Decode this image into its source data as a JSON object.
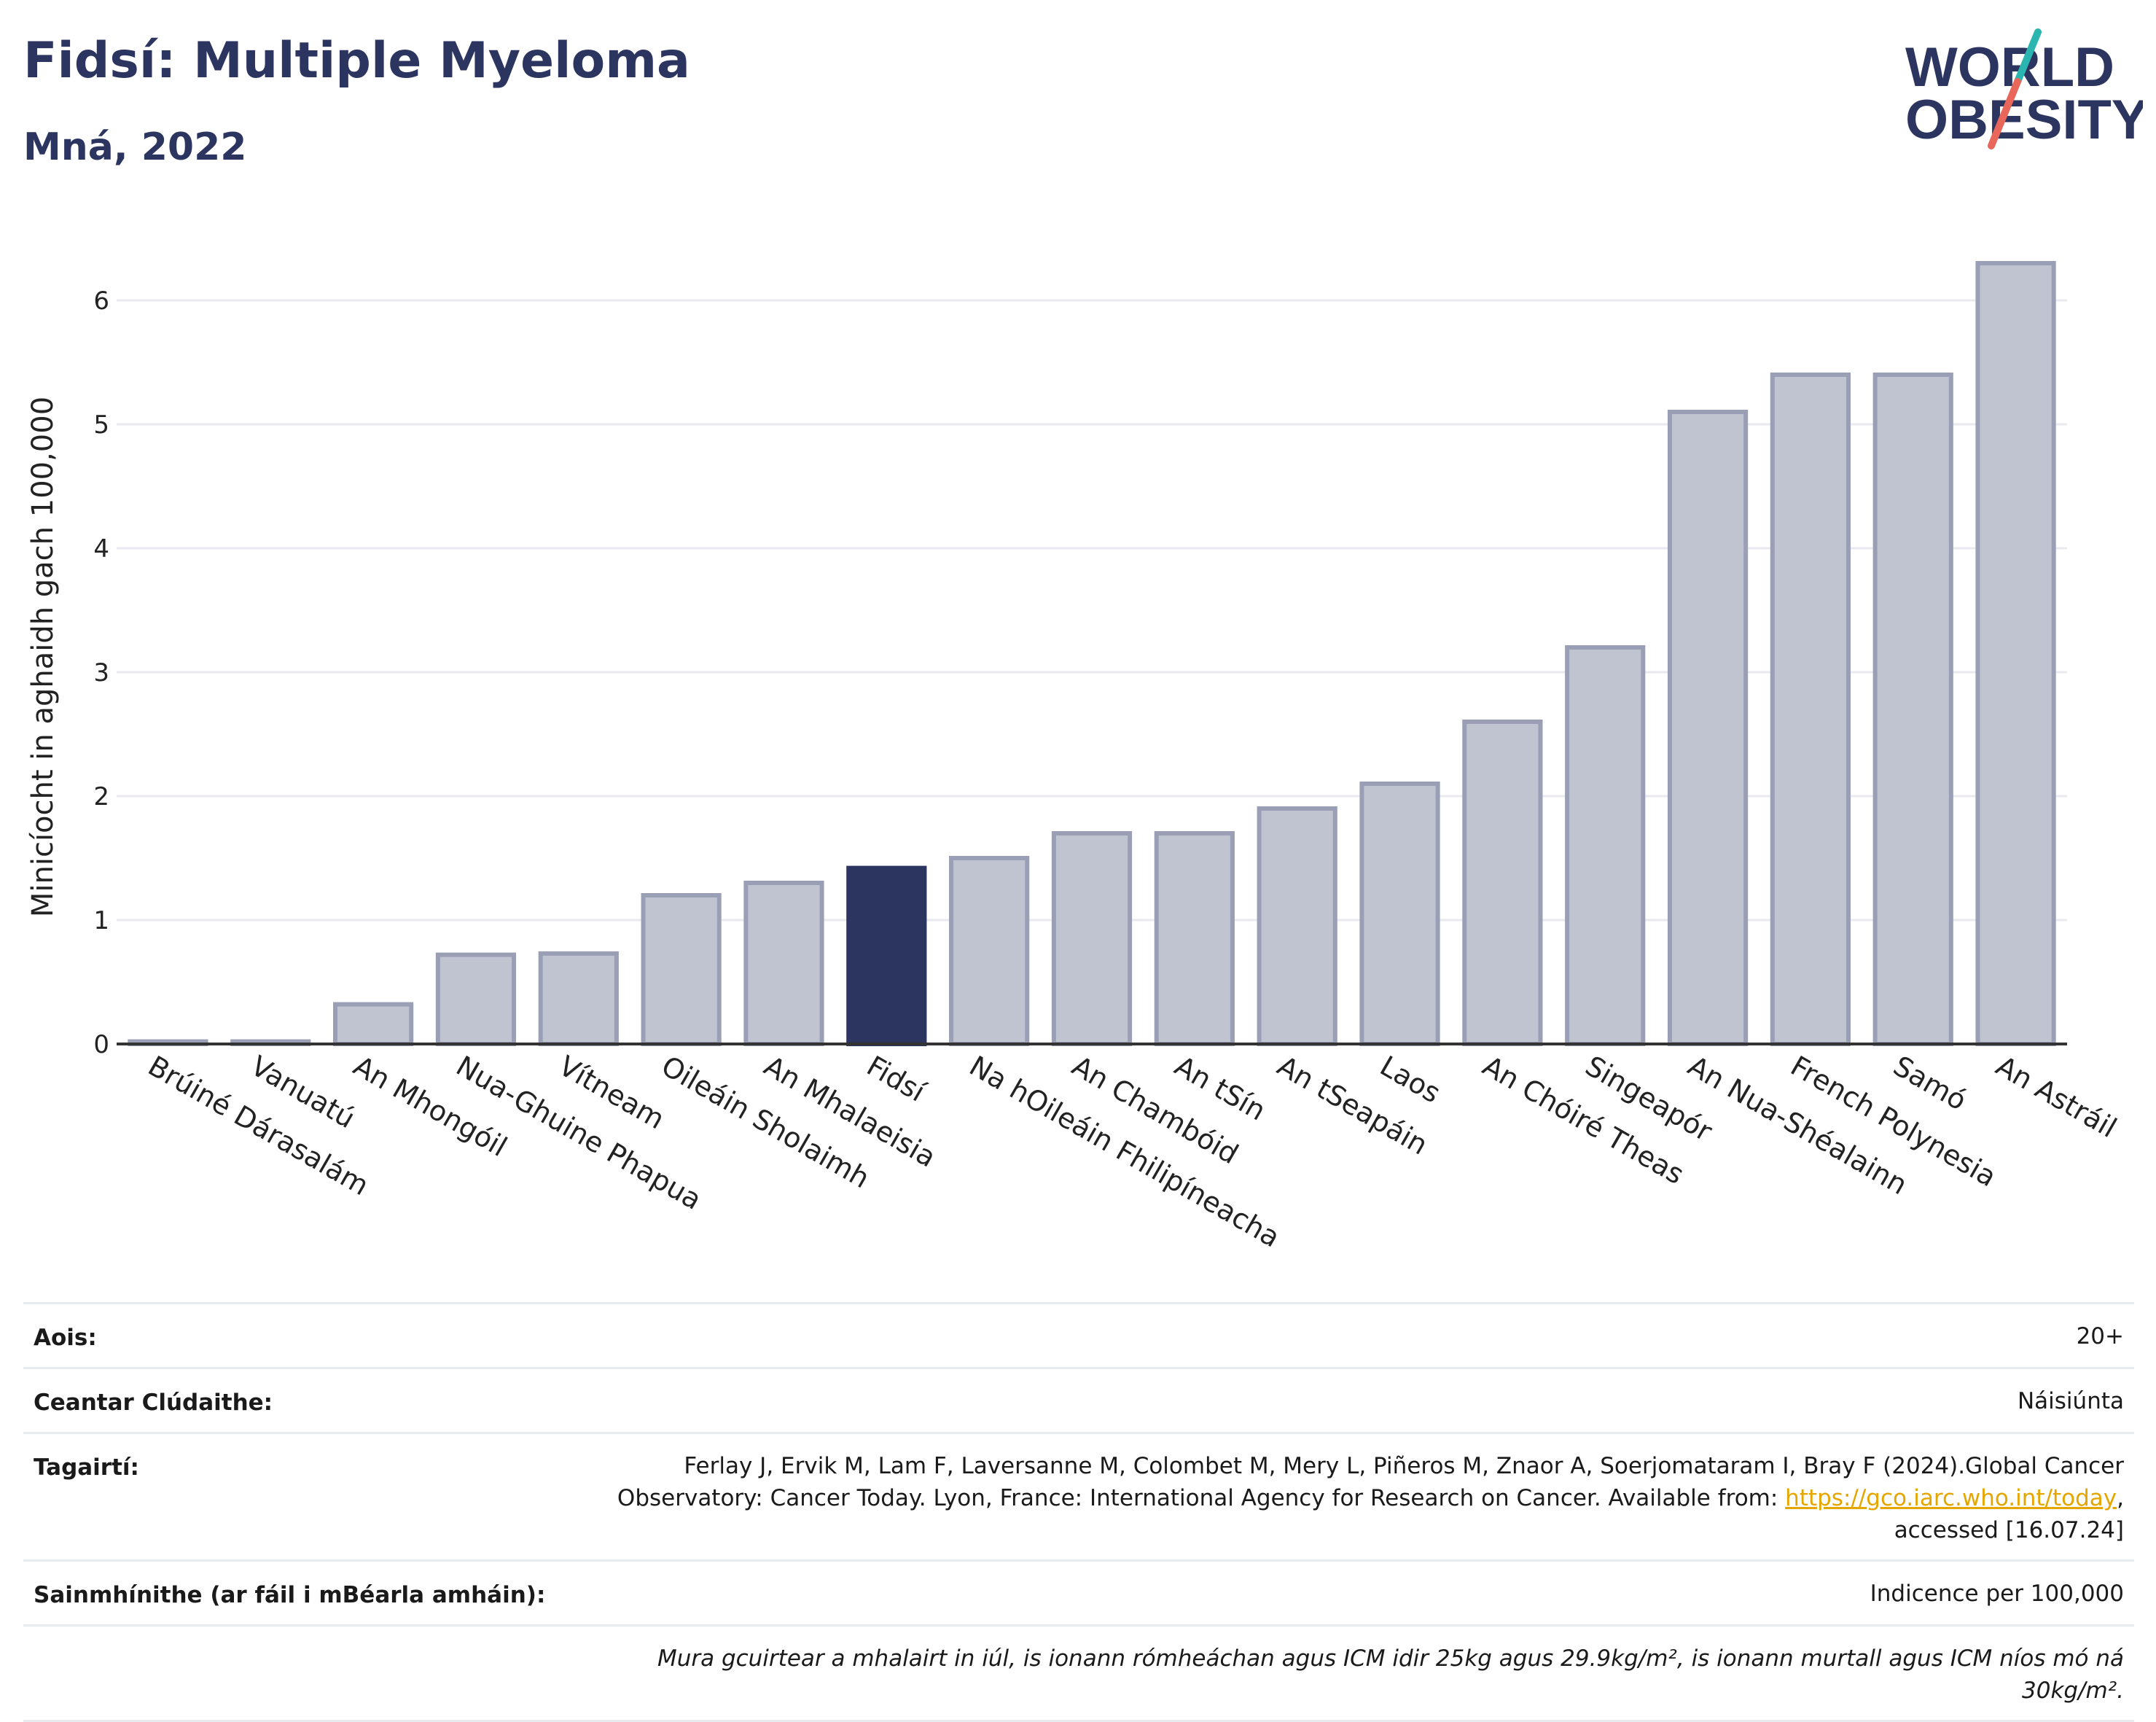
{
  "header": {
    "title": "Fidsí: Multiple Myeloma",
    "subtitle": "Mná, 2022"
  },
  "logo": {
    "line1": "WORLD",
    "line2": "OBESITY",
    "accent_teal": "#2bb5b0",
    "accent_coral": "#e8675a",
    "text_color": "#2c3560"
  },
  "colors": {
    "bar": "#c0c3d0",
    "bar_border": "#9a9fb5",
    "highlight": "#2c3560",
    "grid": "#e8eaef",
    "axis": "#333333"
  },
  "chart_data": {
    "type": "bar",
    "categories": [
      "Brúiné Dárasalám",
      "Vanuatú",
      "An Mhongóil",
      "Nua-Ghuine Phapua",
      "Vítneam",
      "Oileáin Sholaimh",
      "An Mhalaeisia",
      "Fidsí",
      "Na hOileáin Fhilipíneacha",
      "An Chambóid",
      "An tSín",
      "An tSeapáin",
      "Laos",
      "An Chóiré Theas",
      "Singeapór",
      "An Nua-Shéalainn",
      "French Polynesia",
      "Samó",
      "An Astráil"
    ],
    "values": [
      0.02,
      0.02,
      0.32,
      0.72,
      0.73,
      1.2,
      1.3,
      1.42,
      1.5,
      1.7,
      1.7,
      1.9,
      2.1,
      2.6,
      3.2,
      5.1,
      5.4,
      5.4,
      6.3
    ],
    "highlight": "Fidsí",
    "ylabel": "Minicíocht in aghaidh gach 100,000",
    "xlabel": "",
    "ylim": [
      0,
      6.6
    ],
    "yticks": [
      0,
      1,
      2,
      3,
      4,
      5,
      6
    ],
    "grid": true
  },
  "info": {
    "age_label": "Aois:",
    "age_value": "20+",
    "coverage_label": "Ceantar Clúdaithe:",
    "coverage_value": "Náisiúnta",
    "refs_label": "Tagairtí:",
    "refs_text_line1": "Ferlay J, Ervik M, Lam F, Laversanne M, Colombet M, Mery L, Piñeros M, Znaor A, Soerjomataram I, Bray F (2024).Global Cancer",
    "refs_text_line2": "Observatory: Cancer Today. Lyon, France: International Agency for Research on Cancer. Available from: ",
    "refs_link": "https://gco.iarc.who.int/today",
    "refs_text_line2_end": ",",
    "refs_text_line3": "accessed [16.07.24]",
    "definitions_label": "Sainmhínithe (ar fáil i mBéarla amháin):",
    "definitions_value": "Indicence per 100,000",
    "note": "Mura gcuirtear a mhalairt in iúl, is ionann rómheáchan agus ICM idir 25kg agus 29.9kg/m², is ionann murtall agus ICM níos mó ná 30kg/m²."
  }
}
